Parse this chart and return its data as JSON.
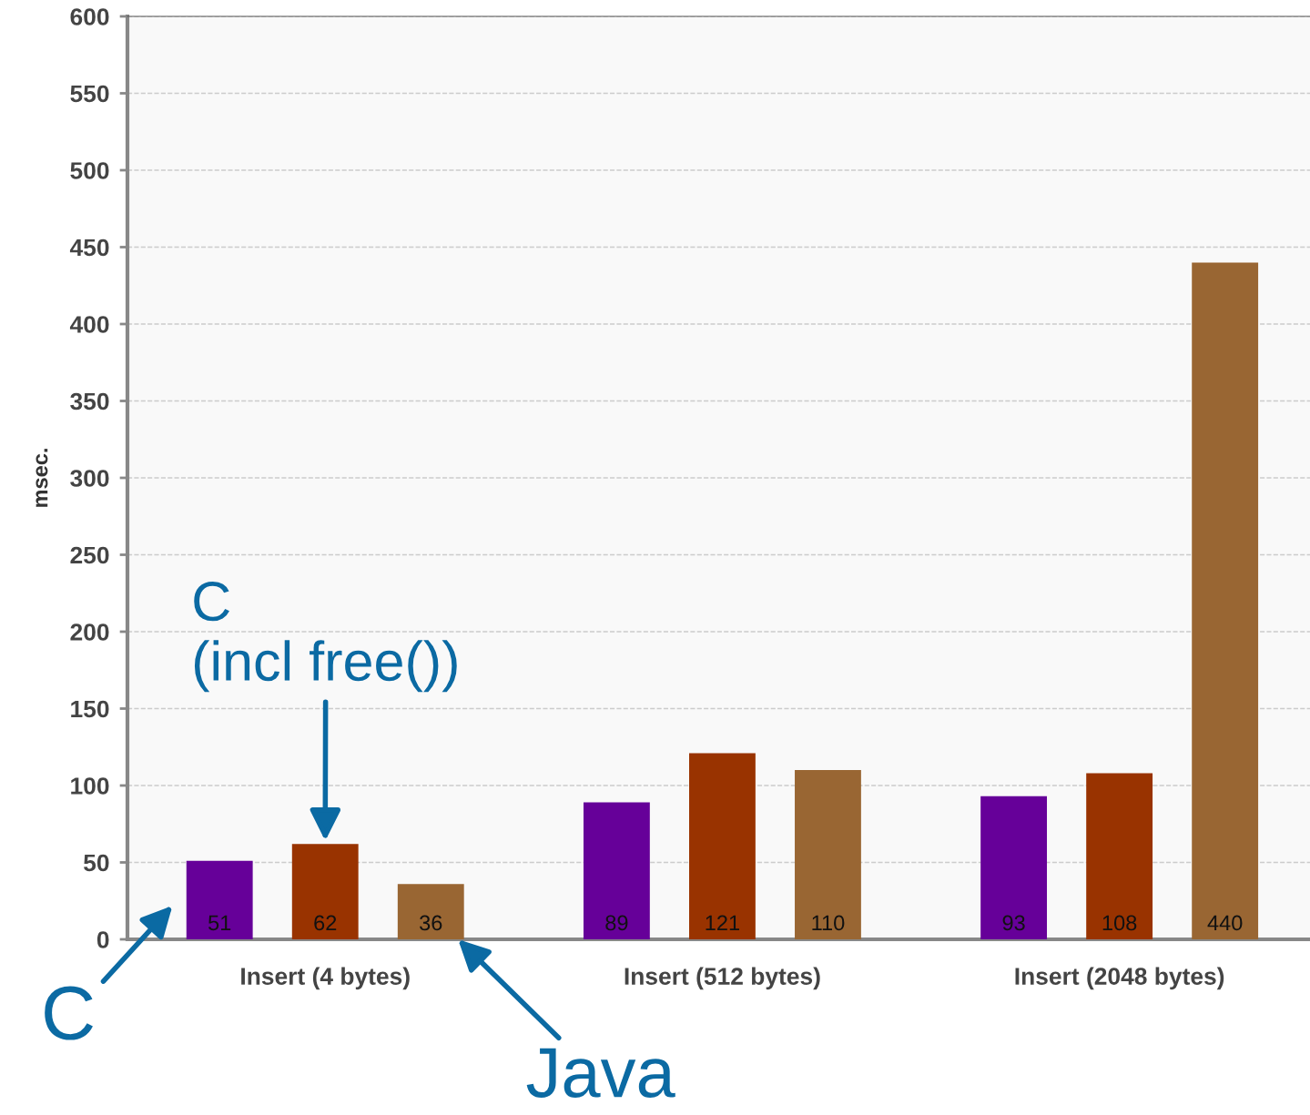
{
  "chart_data": {
    "type": "bar",
    "ylabel": "msec.",
    "categories": [
      "Insert (4 bytes)",
      "Insert (512 bytes)",
      "Insert (2048 bytes)"
    ],
    "series": [
      {
        "color": "#660099",
        "values": [
          51,
          89,
          93
        ]
      },
      {
        "color": "#993300",
        "values": [
          62,
          121,
          108
        ]
      },
      {
        "color": "#996633",
        "values": [
          36,
          110,
          440
        ]
      }
    ],
    "annotations": [
      "C",
      "C\n(incl free())",
      "Java"
    ],
    "ylim": [
      0,
      600
    ],
    "yticks": [
      0,
      50,
      100,
      150,
      200,
      250,
      300,
      350,
      400,
      450,
      500,
      550,
      600
    ],
    "grid": "y",
    "data_labels": true,
    "legend": false
  }
}
